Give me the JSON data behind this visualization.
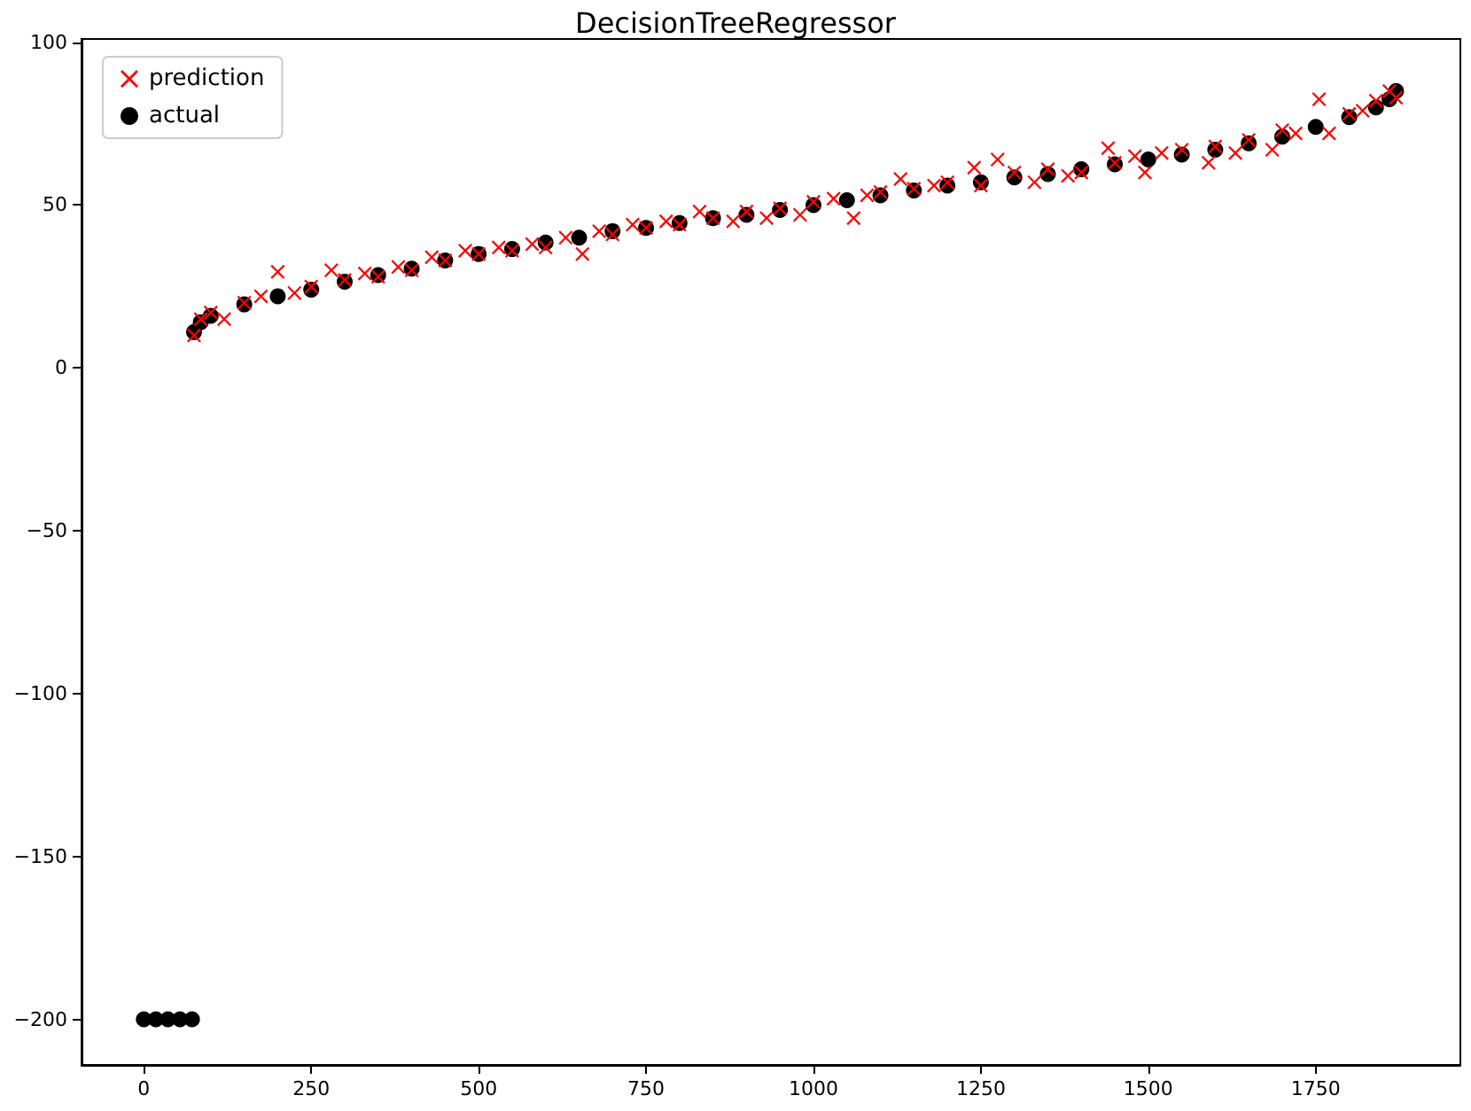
{
  "chart_data": {
    "type": "scatter",
    "title": "DecisionTreeRegressor",
    "series": [
      {
        "name": "prediction",
        "color": "#ff0000",
        "marker": "cross",
        "x": [
          75,
          85,
          100,
          120,
          150,
          175,
          200,
          225,
          250,
          280,
          300,
          330,
          350,
          380,
          400,
          430,
          450,
          480,
          500,
          530,
          550,
          580,
          600,
          630,
          655,
          680,
          700,
          730,
          750,
          780,
          800,
          830,
          850,
          880,
          900,
          930,
          950,
          980,
          1000,
          1030,
          1060,
          1080,
          1100,
          1130,
          1150,
          1180,
          1200,
          1240,
          1250,
          1275,
          1300,
          1330,
          1350,
          1380,
          1400,
          1440,
          1450,
          1480,
          1495,
          1520,
          1550,
          1590,
          1600,
          1630,
          1650,
          1685,
          1700,
          1720,
          1755,
          1770,
          1800,
          1820,
          1840,
          1860,
          1870
        ],
        "values": [
          10,
          15,
          17,
          15,
          20,
          22,
          29.5,
          23,
          25,
          30,
          27,
          29,
          28,
          31,
          30,
          34,
          33,
          36,
          35,
          37,
          36,
          38,
          37,
          40,
          35,
          42,
          41,
          44,
          43,
          45,
          44,
          48,
          46,
          45,
          48,
          46,
          49,
          47,
          51,
          52,
          46,
          53,
          54,
          58,
          55,
          56,
          57,
          61.5,
          56,
          64,
          60,
          57,
          61,
          59,
          60,
          67.5,
          63,
          65,
          60,
          66,
          67,
          63,
          68,
          66,
          70,
          67,
          73,
          72,
          82.5,
          72,
          78,
          79,
          82,
          85,
          83
        ]
      },
      {
        "name": "actual",
        "color": "#000000",
        "marker": "circle",
        "x": [
          0,
          18,
          36,
          54,
          72,
          75,
          85,
          100,
          150,
          200,
          250,
          300,
          350,
          400,
          450,
          500,
          550,
          600,
          650,
          700,
          750,
          800,
          850,
          900,
          950,
          1000,
          1050,
          1100,
          1150,
          1200,
          1250,
          1300,
          1350,
          1400,
          1450,
          1500,
          1550,
          1600,
          1650,
          1700,
          1750,
          1800,
          1840,
          1860,
          1870
        ],
        "values": [
          -200,
          -200,
          -200,
          -200,
          -200,
          11,
          14,
          16,
          19.5,
          22,
          24,
          26.5,
          28.5,
          30.5,
          33,
          35,
          36.5,
          38.5,
          40,
          42,
          43,
          44.5,
          46,
          47,
          48.5,
          50,
          51.5,
          53,
          54.5,
          56,
          57,
          58.5,
          59.5,
          61,
          62.5,
          64,
          65.5,
          67,
          69,
          71,
          74,
          77,
          80,
          82.5,
          85
        ]
      }
    ],
    "xlim": [
      -93,
      1966
    ],
    "xticks": [
      0,
      250,
      500,
      750,
      1000,
      1250,
      1500,
      1750
    ],
    "ylim": [
      -214,
      101
    ],
    "yticks": [
      -200,
      -150,
      -100,
      -50,
      0,
      50,
      100
    ],
    "grid": false,
    "legend": "top left"
  }
}
